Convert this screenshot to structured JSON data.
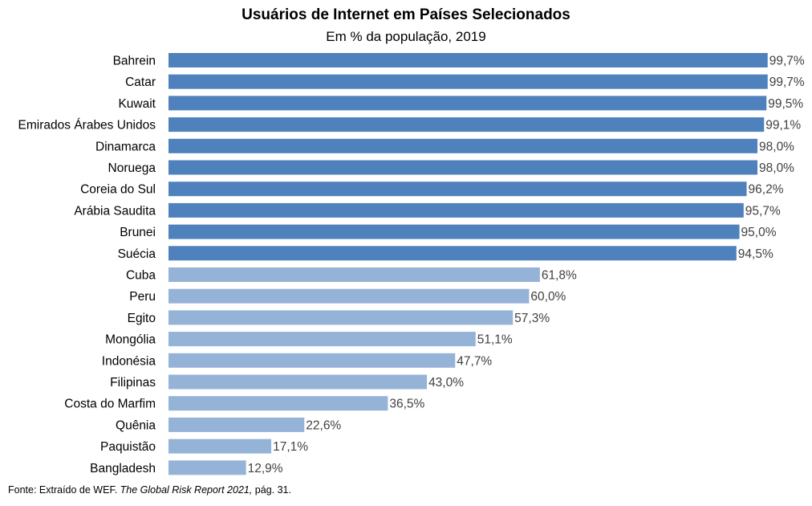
{
  "chart_data": {
    "type": "bar",
    "orientation": "horizontal",
    "title": "Usuários de Internet em Países Selecionados",
    "subtitle": "Em % da população, 2019",
    "categories": [
      "Bahrein",
      "Catar",
      "Kuwait",
      "Emirados Árabes Unidos",
      "Dinamarca",
      "Noruega",
      "Coreia do Sul",
      "Arábia Saudita",
      "Brunei",
      "Suécia",
      "Cuba",
      "Peru",
      "Egito",
      "Mongólia",
      "Indonésia",
      "Filipinas",
      "Costa do Marfim",
      "Quênia",
      "Paquistão",
      "Bangladesh"
    ],
    "values": [
      99.7,
      99.7,
      99.5,
      99.1,
      98.0,
      98.0,
      96.2,
      95.7,
      95.0,
      94.5,
      61.8,
      60.0,
      57.3,
      51.1,
      47.7,
      43.0,
      36.5,
      22.6,
      17.1,
      12.9
    ],
    "value_labels": [
      "99,7%",
      "99,7%",
      "99,5%",
      "99,1%",
      "98,0%",
      "98,0%",
      "96,2%",
      "95,7%",
      "95,0%",
      "94,5%",
      "61,8%",
      "60,0%",
      "57,3%",
      "51,1%",
      "47,7%",
      "43,0%",
      "36,5%",
      "22,6%",
      "17,1%",
      "12,9%"
    ],
    "highlight_count": 10,
    "colors": {
      "highlight": "#4f81bd",
      "regular": "#95b3d7"
    },
    "xlim": [
      0,
      100
    ],
    "grid": false,
    "legend": "none"
  },
  "source": {
    "prefix": "Fonte: Extraído de WEF. ",
    "italic": "The Global Risk Report 2021,",
    "suffix": " pág. 31."
  }
}
